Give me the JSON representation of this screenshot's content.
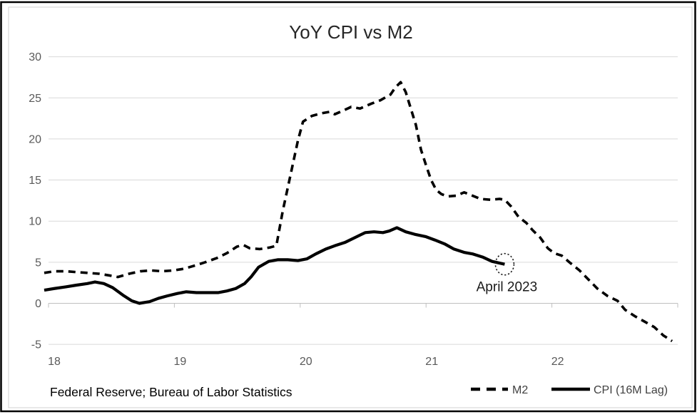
{
  "chart_data": {
    "type": "line",
    "title": "YoY CPI vs M2",
    "source_note": "Federal Reserve; Bureau of Labor Statistics",
    "grid": true,
    "x_axis": {
      "tick_labels": [
        "18",
        "19",
        "20",
        "21",
        "22"
      ]
    },
    "y_axis": {
      "ticks": [
        30,
        25,
        20,
        15,
        10,
        5,
        0,
        -5
      ]
    },
    "ylim": [
      -5,
      30
    ],
    "xlim": [
      18,
      23
    ],
    "legend": {
      "position": "bottom-right",
      "entries": [
        {
          "label": "M2",
          "style": "dashed"
        },
        {
          "label": "CPI (16M Lag)",
          "style": "solid"
        }
      ]
    },
    "annotation": {
      "text": "April 2023",
      "x": 21.63,
      "y": 4.75
    },
    "series": [
      {
        "name": "M2",
        "style": "dashed",
        "x": [
          18.0,
          18.08,
          18.17,
          18.25,
          18.34,
          18.43,
          18.51,
          18.58,
          18.67,
          18.76,
          18.84,
          18.93,
          19.02,
          19.1,
          19.19,
          19.27,
          19.36,
          19.44,
          19.52,
          19.57,
          19.62,
          19.7,
          19.78,
          19.83,
          19.88,
          19.94,
          20.0,
          20.04,
          20.11,
          20.18,
          20.25,
          20.29,
          20.35,
          20.42,
          20.49,
          20.58,
          20.65,
          20.73,
          20.77,
          20.81,
          20.85,
          20.89,
          20.93,
          20.97,
          21.01,
          21.05,
          21.09,
          21.13,
          21.18,
          21.25,
          21.31,
          21.36,
          21.44,
          21.52,
          21.59,
          21.63,
          21.68,
          21.74,
          21.8,
          21.85,
          21.91,
          21.97,
          22.02,
          22.08,
          22.14,
          22.22,
          22.29,
          22.36,
          22.44,
          22.52,
          22.58,
          22.66,
          22.73,
          22.81,
          22.88,
          22.95
        ],
        "y": [
          3.7,
          3.9,
          3.9,
          3.8,
          3.7,
          3.6,
          3.4,
          3.2,
          3.6,
          3.9,
          4.0,
          3.9,
          4.0,
          4.2,
          4.6,
          5.0,
          5.5,
          6.1,
          6.9,
          7.1,
          6.7,
          6.6,
          6.8,
          7.0,
          11.2,
          15.5,
          19.8,
          22.1,
          22.8,
          23.1,
          23.3,
          23.0,
          23.4,
          23.9,
          23.7,
          24.3,
          24.7,
          25.4,
          26.3,
          26.9,
          25.7,
          23.7,
          21.7,
          18.7,
          16.8,
          15.0,
          13.8,
          13.3,
          13.0,
          13.1,
          13.5,
          13.2,
          12.7,
          12.6,
          12.7,
          12.6,
          11.8,
          10.5,
          9.8,
          8.9,
          8.0,
          6.7,
          6.1,
          5.8,
          5.0,
          4.0,
          2.9,
          1.8,
          0.9,
          0.3,
          -0.8,
          -1.6,
          -2.2,
          -2.9,
          -3.9,
          -4.6
        ]
      },
      {
        "name": "CPI (16M Lag)",
        "style": "solid",
        "x": [
          18.0,
          18.08,
          18.17,
          18.25,
          18.34,
          18.4,
          18.47,
          18.54,
          18.62,
          18.69,
          18.75,
          18.83,
          18.9,
          18.97,
          19.05,
          19.12,
          19.2,
          19.28,
          19.37,
          19.44,
          19.51,
          19.58,
          19.63,
          19.69,
          19.77,
          19.84,
          19.92,
          20.0,
          20.07,
          20.14,
          20.22,
          20.29,
          20.37,
          20.45,
          20.53,
          20.6,
          20.67,
          20.72,
          20.78,
          20.85,
          20.92,
          21.01,
          21.08,
          21.16,
          21.23,
          21.31,
          21.38,
          21.46,
          21.53,
          21.63
        ],
        "y": [
          1.6,
          1.8,
          2.0,
          2.2,
          2.4,
          2.6,
          2.4,
          1.9,
          1.0,
          0.3,
          0.0,
          0.2,
          0.6,
          0.9,
          1.2,
          1.4,
          1.3,
          1.3,
          1.3,
          1.5,
          1.8,
          2.4,
          3.2,
          4.4,
          5.1,
          5.3,
          5.3,
          5.2,
          5.4,
          6.0,
          6.6,
          7.0,
          7.4,
          8.0,
          8.6,
          8.7,
          8.6,
          8.8,
          9.2,
          8.7,
          8.4,
          8.1,
          7.7,
          7.2,
          6.6,
          6.2,
          6.0,
          5.6,
          5.1,
          4.75
        ]
      }
    ],
    "colors": {
      "line": "#000000",
      "gridline": "#D9D9D9",
      "axis_line": "#BFBFBF",
      "axis_label_text": "#595959",
      "title_text": "#262626",
      "legend_text": "#404040",
      "background": "#FFFFFF",
      "border": "#000000"
    }
  }
}
